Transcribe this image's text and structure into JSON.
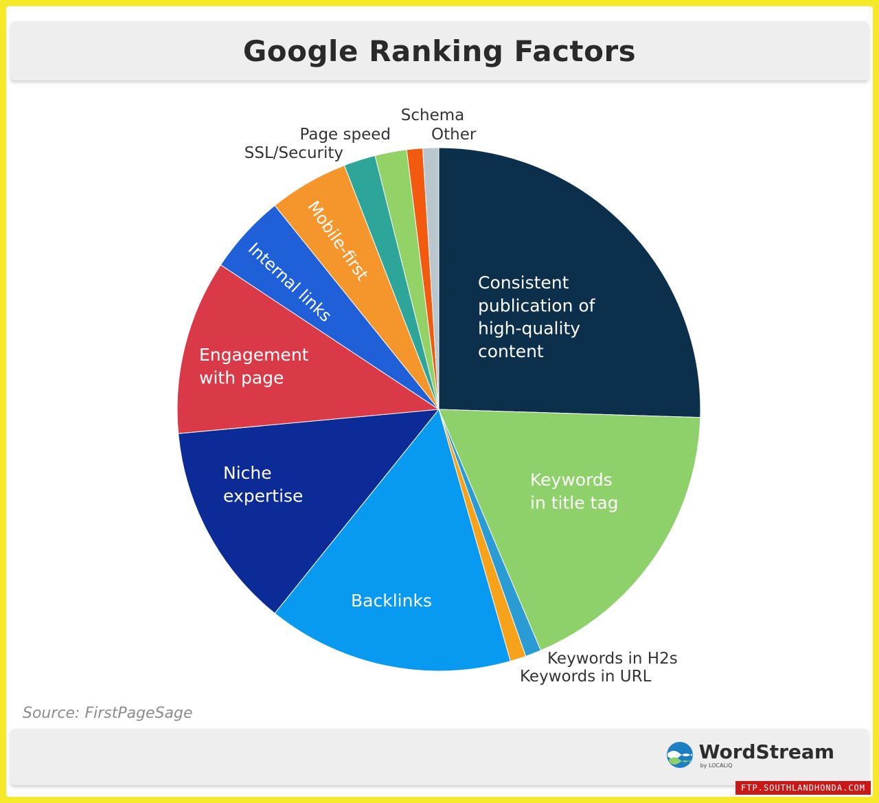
{
  "chart_data": {
    "type": "pie",
    "title": "Google Ranking Factors",
    "slices": [
      {
        "label": "Consistent publication of high-quality content",
        "value": 26,
        "color": "#0c2f4b",
        "text_color": "#ffffff"
      },
      {
        "label": "Keywords in title tag",
        "value": 18.5,
        "color": "#8ed16a",
        "text_color": "#ffffff"
      },
      {
        "label": "Keywords in H2s",
        "value": 1,
        "color": "#2a9bd3",
        "text_color": "#333333"
      },
      {
        "label": "Keywords in URL",
        "value": 1,
        "color": "#f7a21b",
        "text_color": "#333333"
      },
      {
        "label": "Backlinks",
        "value": 15.5,
        "color": "#089af0",
        "text_color": "#ffffff"
      },
      {
        "label": "Niche expertise",
        "value": 13,
        "color": "#0d2b96",
        "text_color": "#ffffff"
      },
      {
        "label": "Engagement with page",
        "value": 11,
        "color": "#da3a48",
        "text_color": "#ffffff"
      },
      {
        "label": "Internal links",
        "value": 5,
        "color": "#1f60d8",
        "text_color": "#ffffff"
      },
      {
        "label": "Mobile-first",
        "value": 5,
        "color": "#f5962c",
        "text_color": "#ffffff"
      },
      {
        "label": "SSL/Security",
        "value": 2,
        "color": "#2da598",
        "text_color": "#333333"
      },
      {
        "label": "Page speed",
        "value": 2,
        "color": "#92d267",
        "text_color": "#333333"
      },
      {
        "label": "Schema",
        "value": 1,
        "color": "#f25a10",
        "text_color": "#333333"
      },
      {
        "label": "Other",
        "value": 1,
        "color": "#b9c6ce",
        "text_color": "#333333"
      }
    ]
  },
  "source": "Source: FirstPageSage",
  "brand": {
    "name": "WordStream",
    "sub": "by LOCALiQ"
  },
  "watermark": "FTP.SOUTHLANDHONDA.COM"
}
